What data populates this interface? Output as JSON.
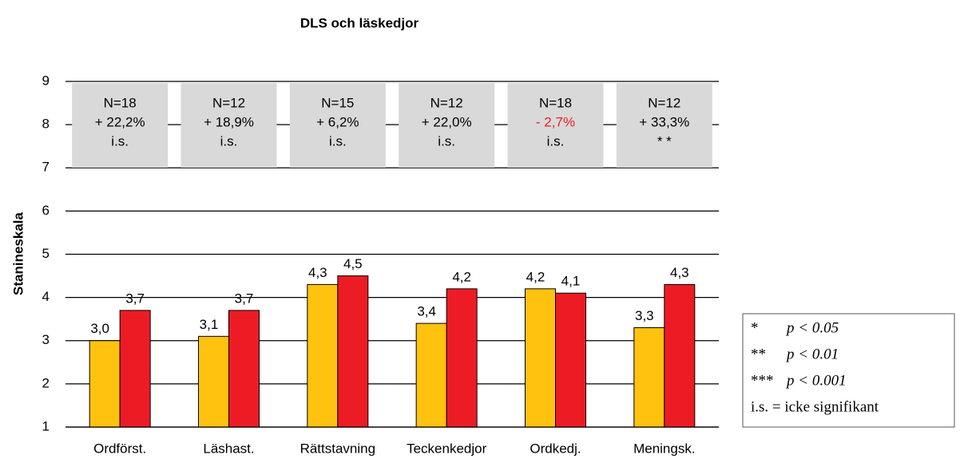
{
  "chart_data": {
    "type": "bar",
    "title": "DLS och läskedjor",
    "y_label": "Stanineskala",
    "categories": [
      "Ordförst.",
      "Läshast.",
      "Rättstavning",
      "Teckenkedjor",
      "Ordkedj.",
      "Meningsk."
    ],
    "series": [
      {
        "color": "#ffc20e",
        "values": [
          3.0,
          3.1,
          4.3,
          3.4,
          4.2,
          3.3
        ],
        "value_labels": [
          "3,0",
          "3,1",
          "4,3",
          "3,4",
          "4,2",
          "3,3"
        ]
      },
      {
        "color": "#ed1c24",
        "values": [
          3.7,
          3.7,
          4.5,
          4.2,
          4.1,
          4.3
        ],
        "value_labels": [
          "3,7",
          "3,7",
          "4,5",
          "4,2",
          "4,1",
          "4,3"
        ]
      }
    ],
    "ylim": [
      1,
      9
    ],
    "yticks": [
      1,
      2,
      3,
      4,
      5,
      6,
      7,
      8,
      9
    ],
    "grid": true,
    "annotations": [
      {
        "n": "N=18",
        "change": "+ 22,2%",
        "significance": "i.s.",
        "change_color": "#000000"
      },
      {
        "n": "N=12",
        "change": "+ 18,9%",
        "significance": "i.s.",
        "change_color": "#000000"
      },
      {
        "n": "N=15",
        "change": "+ 6,2%",
        "significance": "i.s.",
        "change_color": "#000000"
      },
      {
        "n": "N=12",
        "change": "+ 22,0%",
        "significance": "i.s.",
        "change_color": "#000000"
      },
      {
        "n": "N=18",
        "change": "- 2,7%",
        "significance": "i.s.",
        "change_color": "#ed1c24"
      },
      {
        "n": "N=12",
        "change": "+ 33,3%",
        "significance": "* *",
        "change_color": "#000000"
      }
    ],
    "significance_legend": [
      {
        "symbol": "*",
        "text": "p < 0.05"
      },
      {
        "symbol": "**",
        "text": "p < 0.01"
      },
      {
        "symbol": "***",
        "text": "p < 0.001"
      },
      {
        "symbol": "",
        "text": "i.s. = icke signifikant"
      }
    ]
  }
}
